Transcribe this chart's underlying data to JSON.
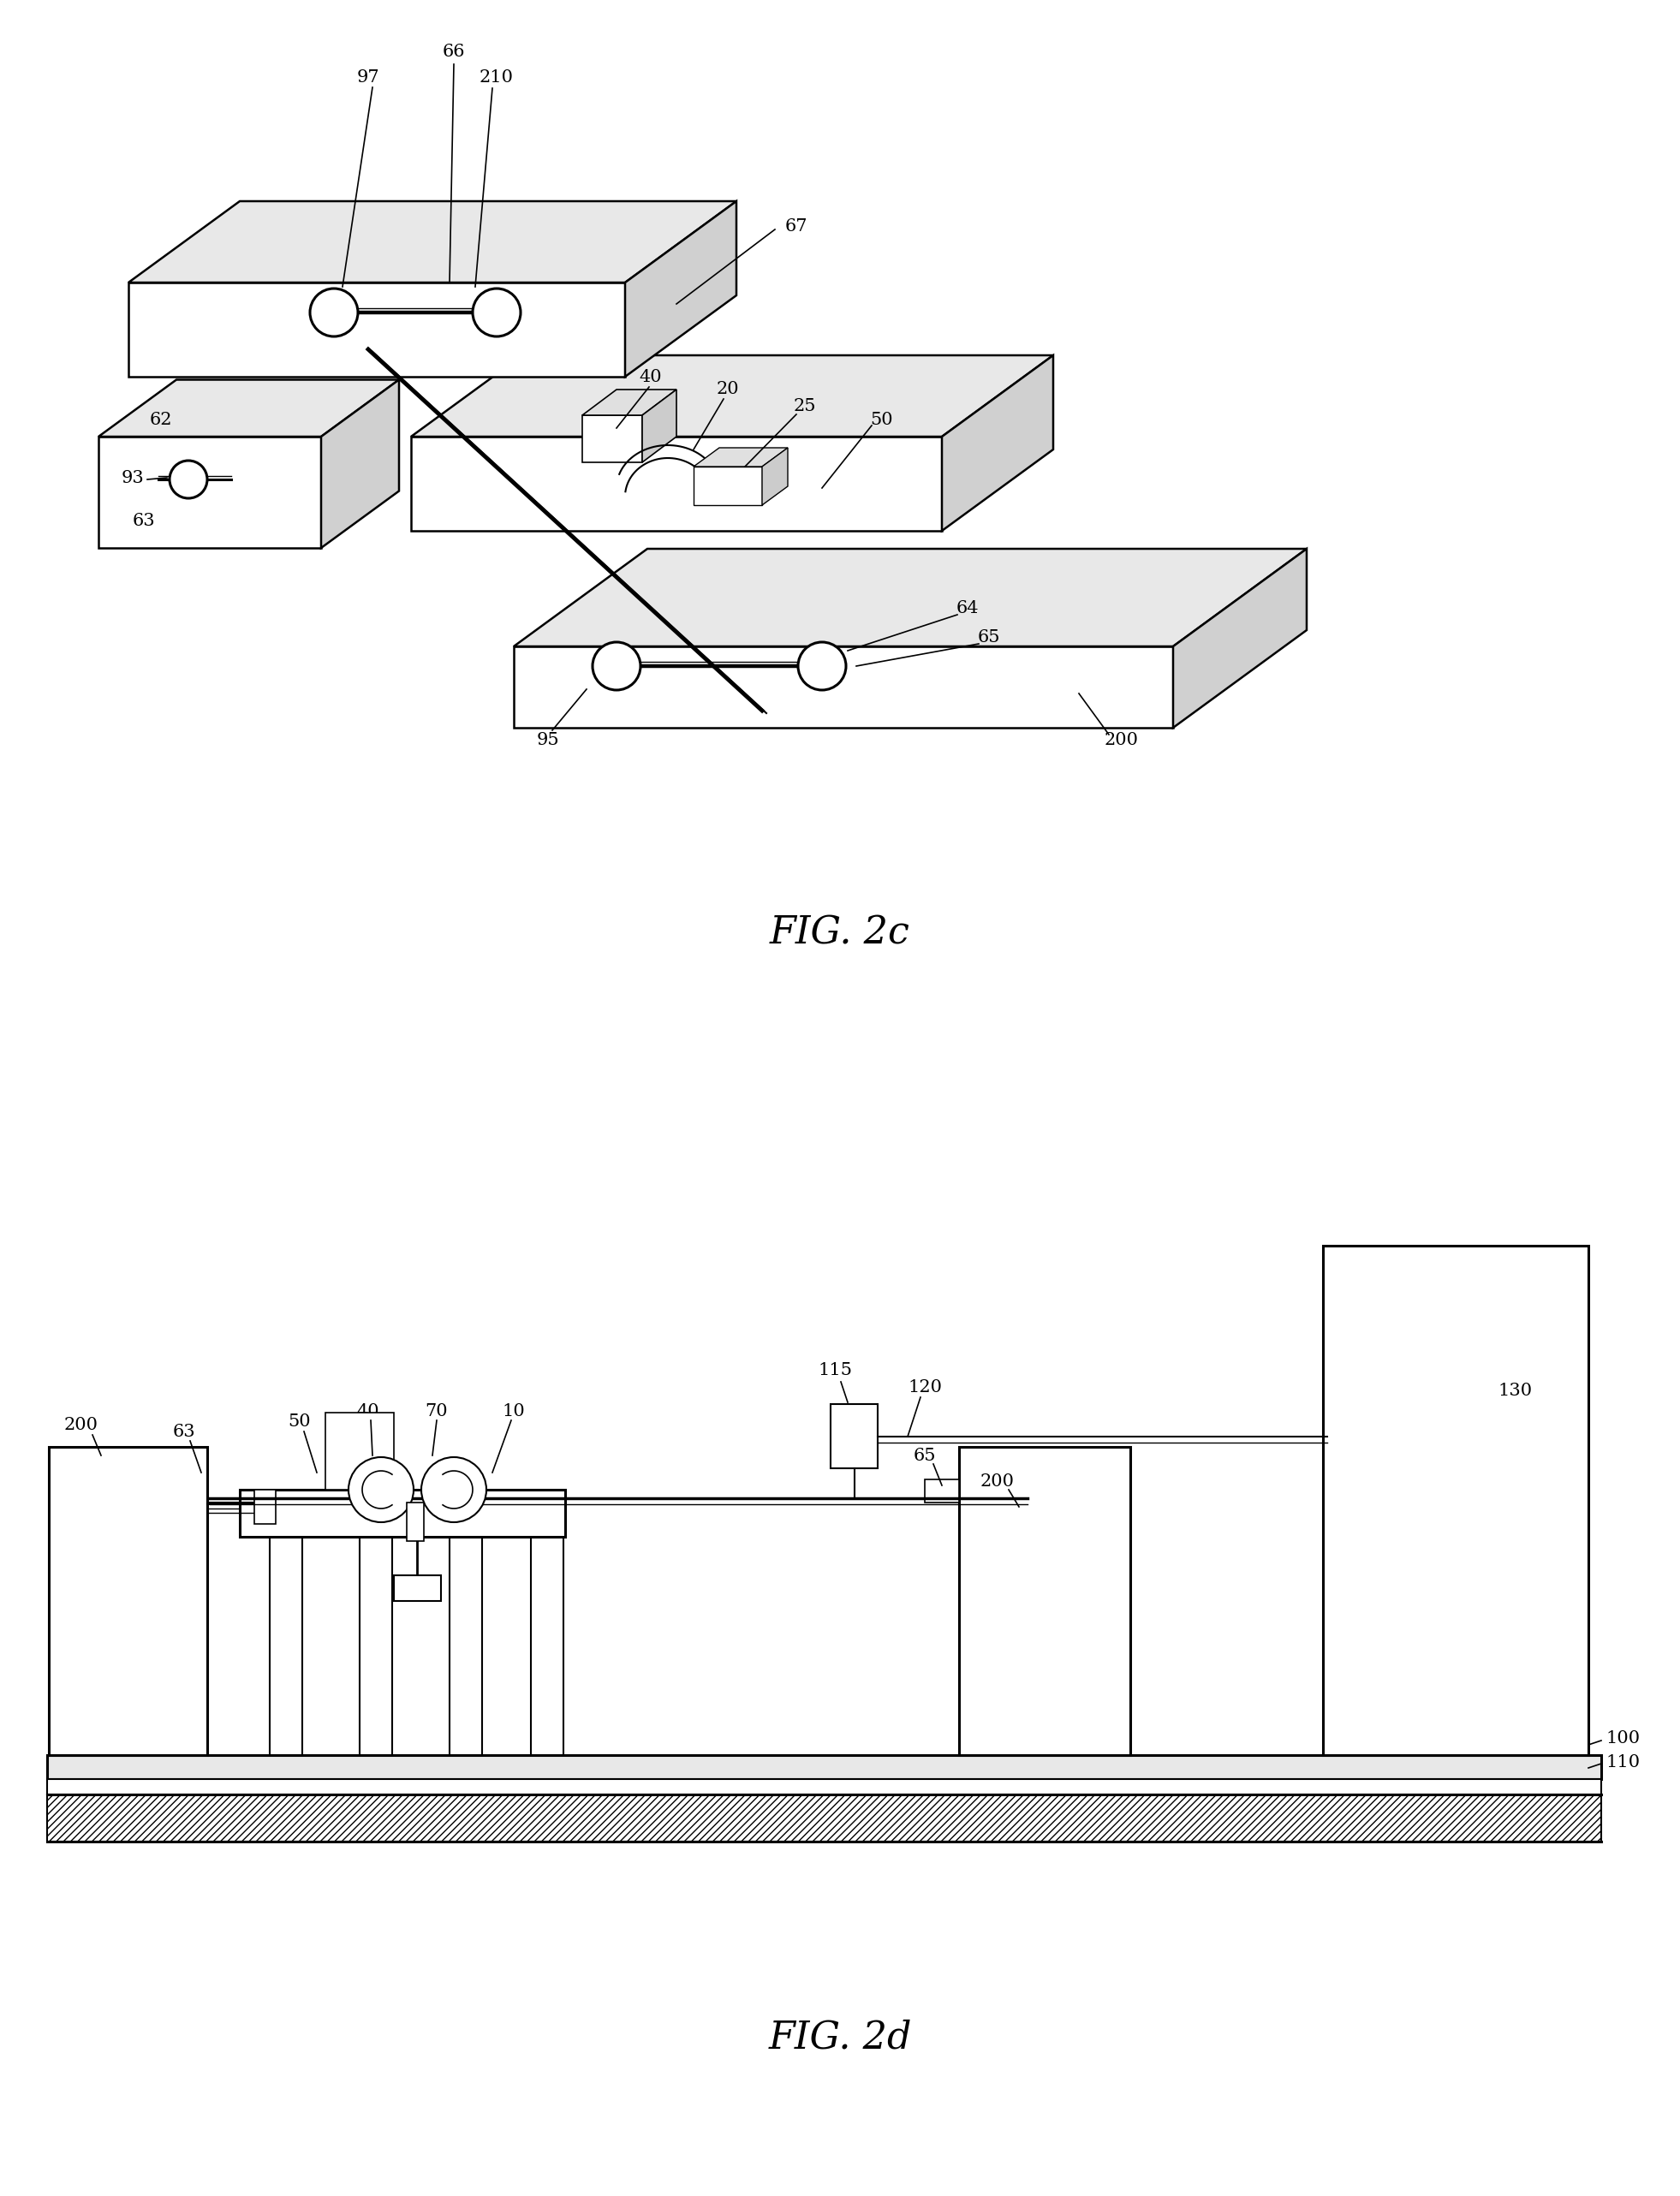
{
  "fig_title_1": "FIG. 2c",
  "fig_title_2": "FIG. 2d",
  "bg_color": "#ffffff",
  "fig_width": 19.62,
  "fig_height": 25.65,
  "label_fontsize": 15,
  "title_fontsize": 32
}
